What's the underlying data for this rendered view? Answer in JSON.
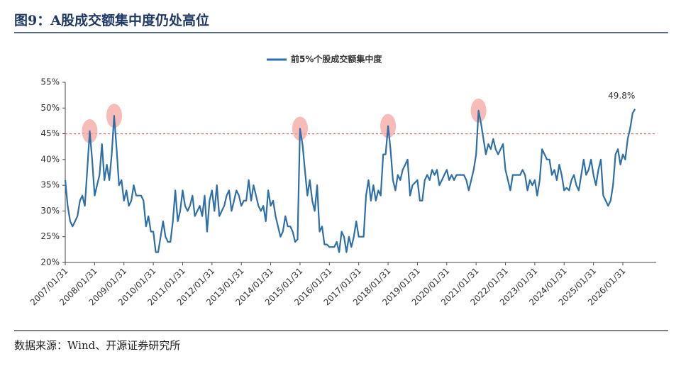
{
  "header": {
    "title": "图9：A股成交额集中度仍处高位"
  },
  "chart_data": {
    "type": "line",
    "legend_position": "top",
    "categories": [
      "2007/01/31",
      null,
      null,
      null,
      null,
      null,
      null,
      null,
      null,
      null,
      null,
      null,
      "2008/01/31",
      null,
      null,
      null,
      null,
      null,
      null,
      null,
      null,
      null,
      null,
      null,
      "2009/01/31",
      null,
      null,
      null,
      null,
      null,
      null,
      null,
      null,
      null,
      null,
      null,
      "2010/01/31",
      null,
      null,
      null,
      null,
      null,
      null,
      null,
      null,
      null,
      null,
      null,
      "2011/01/31",
      null,
      null,
      null,
      null,
      null,
      null,
      null,
      null,
      null,
      null,
      null,
      "2012/01/31",
      null,
      null,
      null,
      null,
      null,
      null,
      null,
      null,
      null,
      null,
      null,
      "2013/01/31",
      null,
      null,
      null,
      null,
      null,
      null,
      null,
      null,
      null,
      null,
      null,
      "2014/01/31",
      null,
      null,
      null,
      null,
      null,
      null,
      null,
      null,
      null,
      null,
      null,
      "2015/01/31",
      null,
      null,
      null,
      null,
      null,
      null,
      null,
      null,
      null,
      null,
      null,
      "2016/01/31",
      null,
      null,
      null,
      null,
      null,
      null,
      null,
      null,
      null,
      null,
      null,
      "2017/01/31",
      null,
      null,
      null,
      null,
      null,
      null,
      null,
      null,
      null,
      null,
      null,
      "2018/01/31",
      null,
      null,
      null,
      null,
      null,
      null,
      null,
      null,
      null,
      null,
      null,
      "2019/01/31",
      null,
      null,
      null,
      null,
      null,
      null,
      null,
      null,
      null,
      null,
      null,
      "2020/01/31",
      null,
      null,
      null,
      null,
      null,
      null,
      null,
      null,
      null,
      null,
      null,
      "2021/01/31",
      null,
      null,
      null,
      null,
      null,
      null,
      null,
      null,
      null,
      null,
      null,
      "2022/01/31",
      null,
      null,
      null,
      null,
      null,
      null,
      null,
      null,
      null,
      null,
      null,
      "2023/01/31",
      null,
      null,
      null,
      null,
      null,
      null,
      null,
      null,
      null,
      null,
      null,
      "2024/01/31",
      null,
      null,
      null,
      null,
      null,
      null,
      null,
      null,
      null,
      null,
      null,
      "2025/01/31",
      null,
      null,
      null,
      null,
      null,
      null,
      null,
      null,
      null,
      null,
      null,
      "2026/01/31",
      null,
      null,
      null,
      null,
      null
    ],
    "series": [
      {
        "name": "前5%个股成交额集中度",
        "color": "#2e6fa7",
        "values": [
          36,
          31,
          28,
          27,
          28,
          29,
          32,
          33,
          31,
          38,
          45.5,
          40,
          33,
          35,
          37,
          43,
          36,
          39,
          36,
          41,
          48.5,
          42,
          35,
          36,
          32,
          34,
          31,
          32,
          35,
          33,
          33,
          33,
          32,
          27,
          29,
          26,
          26,
          22,
          22,
          25,
          28,
          25,
          24,
          24,
          28,
          34,
          28,
          30,
          34,
          31,
          30,
          31,
          33,
          29,
          30,
          31,
          29,
          33,
          26,
          32,
          34,
          30,
          35,
          29,
          30,
          31,
          33,
          34,
          30,
          32,
          34,
          33,
          31,
          32,
          32,
          36,
          32,
          35,
          33,
          31,
          30,
          31,
          28,
          34,
          31,
          32,
          29,
          27,
          25,
          26,
          29,
          27,
          27,
          26,
          24,
          24.5,
          46,
          43,
          38,
          33,
          36,
          32,
          30,
          35,
          26,
          27,
          23.5,
          23.5,
          23,
          23,
          23,
          24,
          22,
          26,
          25,
          22,
          25,
          23,
          25,
          28,
          25,
          25,
          25,
          33,
          36,
          32,
          35,
          32,
          34,
          33,
          41,
          41,
          46.5,
          42,
          36,
          34,
          37,
          36,
          38,
          39,
          40,
          33,
          35,
          35.5,
          36,
          32,
          32,
          36,
          37,
          36,
          38,
          37,
          38,
          35,
          36,
          37,
          38,
          36,
          37,
          36,
          37,
          37,
          37,
          37,
          36,
          34,
          36,
          38,
          41,
          49.5,
          47,
          44,
          41,
          43,
          42,
          44,
          42,
          41,
          42,
          43,
          38,
          36,
          34,
          37,
          37,
          37,
          37,
          38,
          37,
          34,
          36,
          35,
          36,
          33,
          36,
          42,
          41,
          40,
          40,
          37,
          38,
          36,
          39,
          37,
          34,
          34.5,
          34,
          36,
          37,
          35,
          34,
          37,
          40,
          37,
          38,
          40,
          37,
          35,
          38,
          40,
          33,
          32,
          31,
          32,
          35,
          41,
          42,
          39,
          41,
          40,
          44,
          46,
          49,
          49.8
        ]
      }
    ],
    "value_labels": {
      "233": "49.8%"
    },
    "reference_line": {
      "value": 45,
      "color": "#e05050"
    },
    "highlight_color": "#f4a6a0",
    "ylim": [
      20,
      55
    ],
    "yticks": [
      {
        "value": 20,
        "label": "20%"
      },
      {
        "value": 25,
        "label": "25%"
      },
      {
        "value": 30,
        "label": "30%"
      },
      {
        "value": 35,
        "label": "35%"
      },
      {
        "value": 40,
        "label": "40%"
      },
      {
        "value": 45,
        "label": "45%"
      },
      {
        "value": 50,
        "label": "50%"
      },
      {
        "value": 55,
        "label": "55%"
      }
    ],
    "grid": false
  },
  "footer": {
    "source": "数据来源：Wind、开源证券研究所"
  }
}
